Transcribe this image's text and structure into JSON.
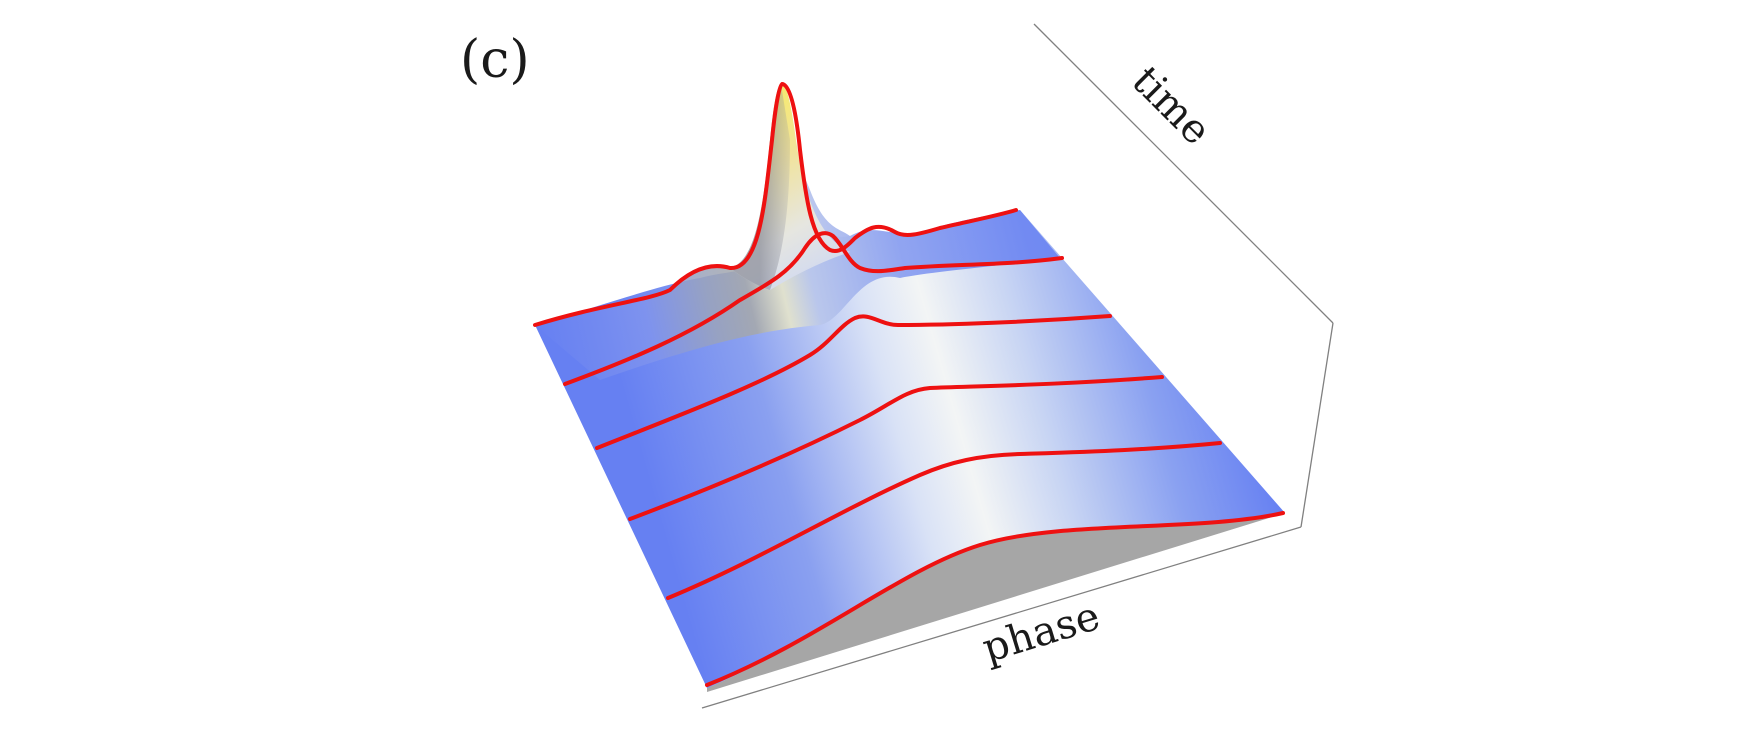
{
  "figure": {
    "panel_label": "(c)",
    "time_label": "time",
    "phase_label": "phase"
  },
  "colors": {
    "surface_low": "#6680f2",
    "surface_mid": "#e8eef2",
    "surface_high": "#f3e070",
    "slice_line": "#ee1111",
    "shadow": "#a6a6a6",
    "box_line": "#808080"
  }
}
